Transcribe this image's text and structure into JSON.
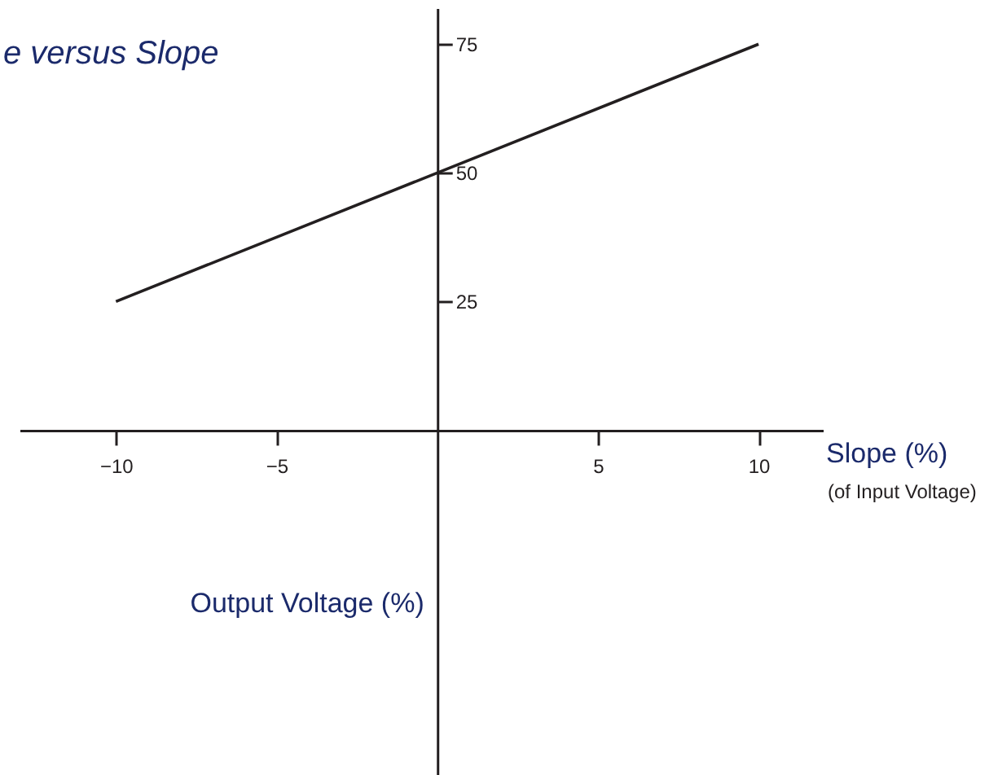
{
  "chart_data": {
    "type": "line",
    "title": "e versus Slope",
    "xlabel": "Slope (%)",
    "ylabel": "Output Voltage (%)",
    "annotations": [
      "(of Input Voltage)"
    ],
    "x": [
      -10,
      10
    ],
    "series": [
      {
        "color": "#231f20",
        "values": [
          25,
          75
        ]
      }
    ],
    "xlim": [
      -13,
      12
    ],
    "ylim": [
      -67,
      82
    ],
    "xticks": [
      -10,
      -5,
      5,
      10
    ],
    "yticks": [
      25,
      50,
      75
    ],
    "grid": false,
    "legend": false,
    "marker": "none",
    "line_style": "solid"
  }
}
